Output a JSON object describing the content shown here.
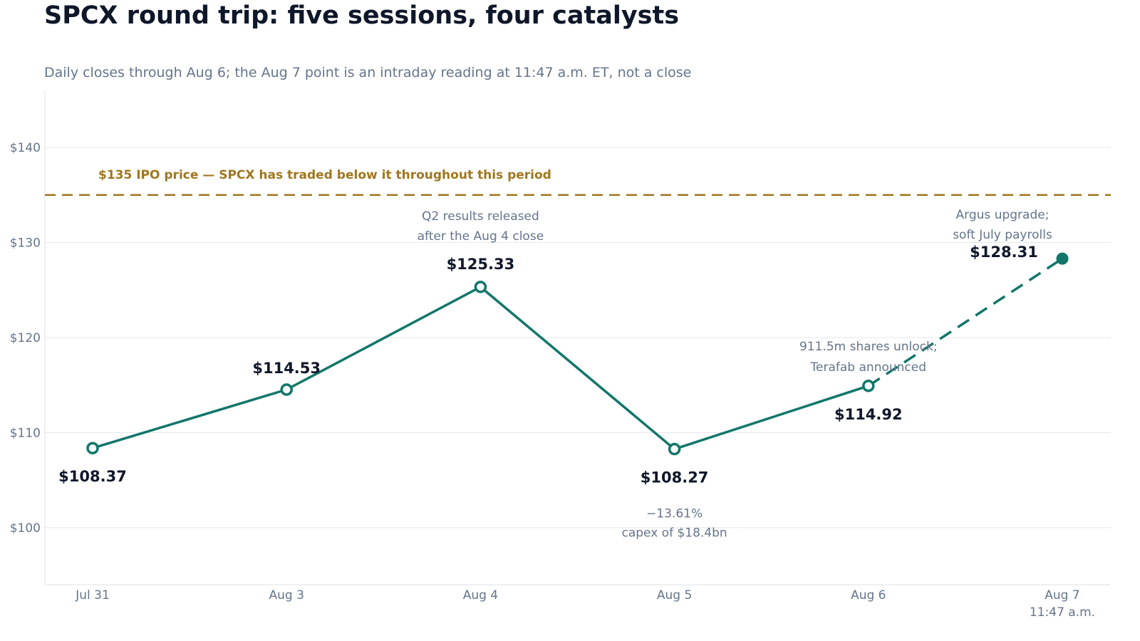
{
  "title": "SPCX round trip: five sessions, four catalysts",
  "subtitle": "Daily closes through Aug 6; the Aug 7 point is an intraday reading at 11:47 a.m. ET, not a close",
  "colors": {
    "line": "#11766a",
    "reference": "#a0761e",
    "grid": "#e5e7eb",
    "axis_text": "#64748b",
    "label_text": "#0f172a"
  },
  "chart_data": {
    "type": "line",
    "title": "SPCX round trip: five sessions, four catalysts",
    "subtitle": "Daily closes through Aug 6; the Aug 7 point is an intraday reading at 11:47 a.m. ET, not a close",
    "xlabel": "",
    "ylabel": "",
    "ylim": [
      94,
      146
    ],
    "yticks": [
      100,
      110,
      120,
      130,
      140
    ],
    "ytick_labels": [
      "$100",
      "$110",
      "$120",
      "$130",
      "$140"
    ],
    "grid": true,
    "categories": [
      {
        "line1": "Jul 31",
        "line2": ""
      },
      {
        "line1": "Aug 3",
        "line2": ""
      },
      {
        "line1": "Aug 4",
        "line2": ""
      },
      {
        "line1": "Aug 5",
        "line2": ""
      },
      {
        "line1": "Aug 6",
        "line2": ""
      },
      {
        "line1": "Aug 7",
        "line2": "11:47 a.m."
      }
    ],
    "series": [
      {
        "values": [
          108.37,
          114.53,
          125.33,
          108.27,
          114.92,
          128.31
        ],
        "labels": [
          "$108.37",
          "$114.53",
          "$125.33",
          "$108.27",
          "$114.92",
          "$128.31"
        ],
        "point_kinds": [
          "close",
          "close",
          "close",
          "close",
          "close",
          "intraday"
        ]
      }
    ],
    "reference_line": {
      "value": 135,
      "label": "$135 IPO price — SPCX has traded below it throughout this period"
    },
    "annotations": [
      {
        "point": 2,
        "lines": [
          "Q2 results released",
          "after the Aug 4 close"
        ]
      },
      {
        "point": 3,
        "lines": [
          "−13.61%",
          "capex of $18.4bn"
        ]
      },
      {
        "point": 4,
        "lines": [
          "911.5m shares unlock;",
          "Terafab announced"
        ]
      },
      {
        "point": 5,
        "lines": [
          "Argus upgrade;",
          "soft July payrolls"
        ]
      }
    ]
  }
}
